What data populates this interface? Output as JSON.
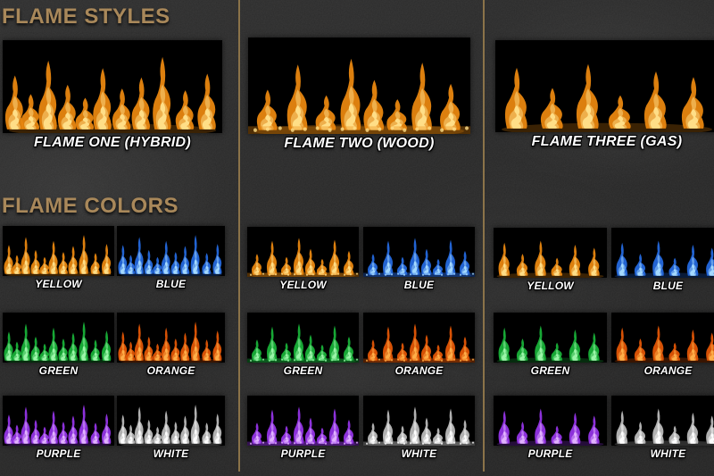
{
  "headings": {
    "styles": "FLAME STYLES",
    "colors": "FLAME COLORS"
  },
  "theme": {
    "heading_color": "#a9885a",
    "divider_color": "#8b7349",
    "background_color": "#2b2b2b",
    "label_color": "#ffffff",
    "swatch_background": "#000000"
  },
  "natural_flame": {
    "outer": "#e8860f",
    "inner": "#ffe08a"
  },
  "styles": [
    {
      "label": "FLAME ONE (HYBRID)",
      "icon": "dense-flame-row"
    },
    {
      "label": "FLAME TWO (WOOD)",
      "icon": "wood-flame-row"
    },
    {
      "label": "FLAME THREE (GAS)",
      "icon": "gas-flame-row"
    }
  ],
  "palette": [
    {
      "label": "YELLOW",
      "outer": "#e8860f",
      "inner": "#ffe08a"
    },
    {
      "label": "BLUE",
      "outer": "#2468dd",
      "inner": "#a8dcff"
    },
    {
      "label": "GREEN",
      "outer": "#18b038",
      "inner": "#9ef7ab"
    },
    {
      "label": "ORANGE",
      "outer": "#e25505",
      "inner": "#ffb04a"
    },
    {
      "label": "PURPLE",
      "outer": "#9334e6",
      "inner": "#e3b5ff"
    },
    {
      "label": "WHITE",
      "outer": "#b9b9b9",
      "inner": "#ffffff"
    }
  ]
}
